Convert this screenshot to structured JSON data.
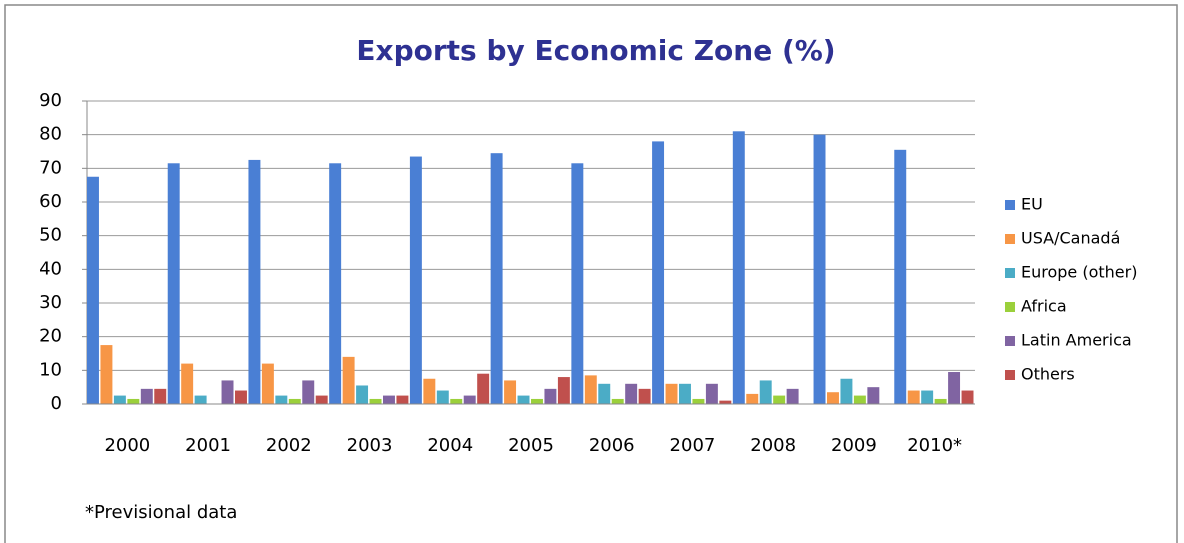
{
  "chart_data": {
    "type": "bar",
    "title": "Exports by Economic Zone (%)",
    "categories": [
      "2000",
      "2001",
      "2002",
      "2003",
      "2004",
      "2005",
      "2006",
      "2007",
      "2008",
      "2009",
      "2010*"
    ],
    "series": [
      {
        "name": "EU",
        "color": "#4a7fd4",
        "values": [
          67.5,
          71.5,
          72.5,
          71.5,
          73.5,
          74.5,
          71.5,
          78,
          81,
          80,
          75.5
        ]
      },
      {
        "name": "USA/Canadá",
        "color": "#f79646",
        "values": [
          17.5,
          12,
          12,
          14,
          7.5,
          7,
          8.5,
          6,
          3,
          3.5,
          4
        ]
      },
      {
        "name": "Europe (other)",
        "color": "#4bacc6",
        "values": [
          2.5,
          2.5,
          2.5,
          5.5,
          4,
          2.5,
          6,
          6,
          7,
          7.5,
          4
        ]
      },
      {
        "name": "Africa",
        "color": "#9bd03b",
        "values": [
          1.5,
          0,
          1.5,
          1.5,
          1.5,
          1.5,
          1.5,
          1.5,
          2.5,
          2.5,
          1.5
        ]
      },
      {
        "name": "Latin America",
        "color": "#8064a2",
        "values": [
          4.5,
          7,
          7,
          2.5,
          2.5,
          4.5,
          6,
          6,
          4.5,
          5,
          9.5
        ]
      },
      {
        "name": "Others",
        "color": "#c0504d",
        "values": [
          4.5,
          4,
          2.5,
          2.5,
          9,
          8,
          4.5,
          1,
          0,
          0,
          4
        ]
      }
    ],
    "ylim": [
      0,
      90
    ],
    "yticks": [
      0,
      10,
      20,
      30,
      40,
      50,
      60,
      70,
      80,
      90
    ],
    "grid": true,
    "legend": "right",
    "note": "*Previsional data"
  }
}
